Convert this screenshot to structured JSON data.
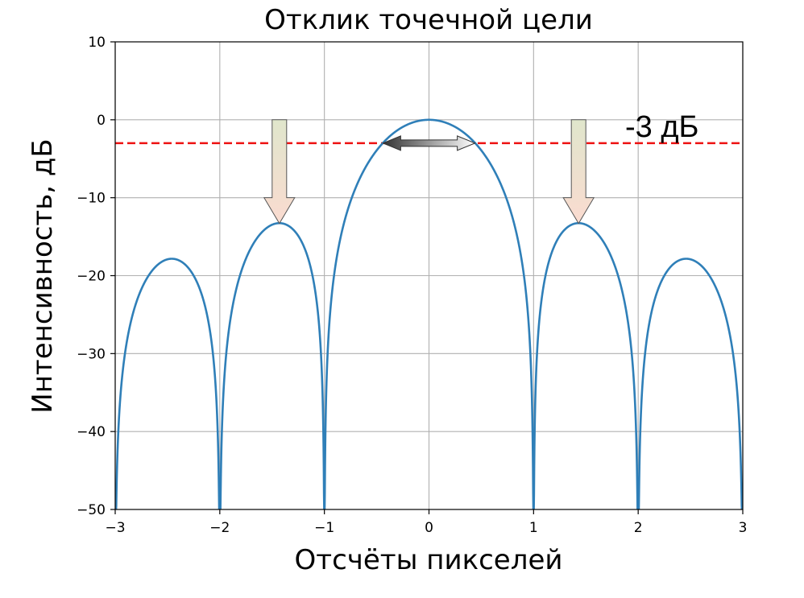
{
  "chart_data": {
    "type": "line",
    "title": "Отклик точечной цели",
    "xlabel": "Отсчёты пикселей",
    "ylabel": "Интенсивность, дБ",
    "xlim": [
      -3,
      3
    ],
    "ylim": [
      -50,
      10
    ],
    "xticks": [
      -3,
      -2,
      -1,
      0,
      1,
      2,
      3
    ],
    "xtick_labels": [
      "−3",
      "−2",
      "−1",
      "0",
      "1",
      "2",
      "3"
    ],
    "yticks": [
      -50,
      -40,
      -30,
      -20,
      -10,
      0,
      10
    ],
    "ytick_labels": [
      "−50",
      "−40",
      "−30",
      "−20",
      "−10",
      "0",
      "10"
    ],
    "grid": true,
    "series": [
      {
        "function": "20*log10(|sinc(x)|)",
        "color": "#2f7fb8",
        "floor_db": -50,
        "key_points": [
          {
            "x": 0,
            "y": 0
          },
          {
            "x": -1.43,
            "y": -13.3
          },
          {
            "x": 1.43,
            "y": -13.3
          },
          {
            "x": -2.46,
            "y": -17.9
          },
          {
            "x": 2.46,
            "y": -17.9
          },
          {
            "x": -1,
            "y": -40.5
          },
          {
            "x": 1,
            "y": -40.5
          },
          {
            "x": -2,
            "y": -48
          },
          {
            "x": 2,
            "y": -48
          }
        ]
      }
    ],
    "reference_line": {
      "y": -3,
      "color": "#ee1111",
      "style": "dashed",
      "label": "-3 дБ"
    },
    "annotations": [
      {
        "kind": "down-arrow",
        "x": -1.43,
        "y_from": 0,
        "y_to": -13.3
      },
      {
        "kind": "down-arrow",
        "x": 1.43,
        "y_from": 0,
        "y_to": -13.3
      },
      {
        "kind": "double-arrow",
        "x_from": -0.44,
        "x_to": 0.44,
        "y": -3
      }
    ]
  }
}
